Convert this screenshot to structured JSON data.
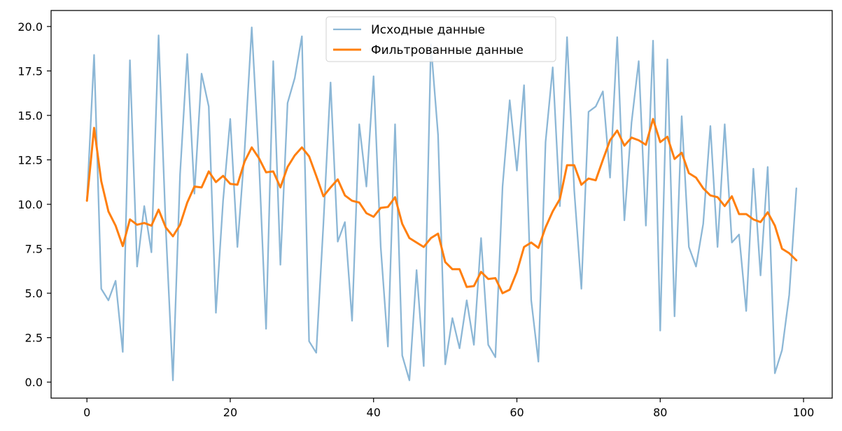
{
  "chart_data": {
    "type": "line",
    "title": "",
    "xlabel": "",
    "ylabel": "",
    "xlim": [
      -5,
      104
    ],
    "ylim": [
      -0.9,
      20.9
    ],
    "xticks": [
      0,
      20,
      40,
      60,
      80,
      100
    ],
    "yticks": [
      0.0,
      2.5,
      5.0,
      7.5,
      10.0,
      12.5,
      15.0,
      17.5,
      20.0
    ],
    "xtick_labels": [
      "0",
      "20",
      "40",
      "60",
      "80",
      "100"
    ],
    "ytick_labels": [
      "0.0",
      "2.5",
      "5.0",
      "7.5",
      "10.0",
      "12.5",
      "15.0",
      "17.5",
      "20.0"
    ],
    "grid": false,
    "legend_position": "top-center",
    "series": [
      {
        "name": "Исходные данные",
        "color": "#8cb7d6",
        "x": [
          0,
          1,
          2,
          3,
          4,
          5,
          6,
          7,
          8,
          9,
          10,
          11,
          12,
          13,
          14,
          15,
          16,
          17,
          18,
          19,
          20,
          21,
          22,
          23,
          24,
          25,
          26,
          27,
          28,
          29,
          30,
          31,
          32,
          33,
          34,
          35,
          36,
          37,
          38,
          39,
          40,
          41,
          42,
          43,
          44,
          45,
          46,
          47,
          48,
          49,
          50,
          51,
          52,
          53,
          54,
          55,
          56,
          57,
          58,
          59,
          60,
          61,
          62,
          63,
          64,
          65,
          66,
          67,
          68,
          69,
          70,
          71,
          72,
          73,
          74,
          75,
          76,
          77,
          78,
          79,
          80,
          81,
          82,
          83,
          84,
          85,
          86,
          87,
          88,
          89,
          90,
          91,
          92,
          93,
          94,
          95,
          96,
          97,
          98,
          99
        ],
        "values": [
          10.2,
          18.4,
          5.25,
          4.6,
          5.7,
          1.7,
          18.1,
          6.5,
          9.9,
          7.3,
          19.5,
          8.7,
          0.1,
          11.7,
          18.45,
          10.6,
          17.35,
          15.5,
          3.9,
          10.2,
          14.8,
          7.6,
          13.0,
          19.95,
          12.5,
          3.0,
          18.05,
          6.6,
          15.7,
          17.1,
          19.45,
          2.3,
          1.65,
          8.9,
          16.85,
          7.9,
          9.0,
          3.45,
          14.5,
          11.0,
          17.2,
          7.6,
          2.0,
          14.5,
          1.5,
          0.1,
          6.3,
          0.9,
          19.0,
          13.9,
          1.0,
          3.6,
          1.9,
          4.6,
          2.1,
          8.1,
          2.1,
          1.4,
          11.0,
          15.85,
          11.9,
          16.7,
          4.6,
          1.15,
          13.5,
          17.7,
          9.9,
          19.4,
          10.8,
          5.25,
          15.2,
          15.5,
          16.35,
          11.5,
          19.4,
          9.1,
          14.6,
          18.05,
          8.8,
          19.2,
          2.9,
          18.15,
          3.7,
          14.95,
          7.6,
          6.5,
          8.9,
          14.4,
          7.6,
          14.5,
          7.85,
          8.3,
          4.0,
          12.0,
          6.0,
          12.1,
          0.5,
          1.8,
          4.9,
          10.9
        ]
      },
      {
        "name": "Фильтрованные данные",
        "color": "#ff7f0e",
        "x": [
          0,
          1,
          2,
          3,
          4,
          5,
          6,
          7,
          8,
          9,
          10,
          11,
          12,
          13,
          14,
          15,
          16,
          17,
          18,
          19,
          20,
          21,
          22,
          23,
          24,
          25,
          26,
          27,
          28,
          29,
          30,
          31,
          32,
          33,
          34,
          35,
          36,
          37,
          38,
          39,
          40,
          41,
          42,
          43,
          44,
          45,
          46,
          47,
          48,
          49,
          50,
          51,
          52,
          53,
          54,
          55,
          56,
          57,
          58,
          59,
          60,
          61,
          62,
          63,
          64,
          65,
          66,
          67,
          68,
          69,
          70,
          71,
          72,
          73,
          74,
          75,
          76,
          77,
          78,
          79,
          80,
          81,
          82,
          83,
          84,
          85,
          86,
          87,
          88,
          89,
          90,
          91,
          92,
          93,
          94,
          95,
          96,
          97,
          98,
          99
        ],
        "values": [
          10.2,
          14.3,
          11.3,
          9.6,
          8.8,
          7.65,
          9.15,
          8.85,
          8.95,
          8.8,
          9.7,
          8.7,
          8.2,
          8.85,
          10.1,
          11.0,
          10.95,
          11.85,
          11.25,
          11.6,
          11.15,
          11.1,
          12.4,
          13.2,
          12.6,
          11.8,
          11.85,
          10.95,
          12.1,
          12.75,
          13.2,
          12.7,
          11.6,
          10.45,
          10.95,
          11.4,
          10.5,
          10.2,
          10.1,
          9.5,
          9.3,
          9.8,
          9.85,
          10.4,
          8.9,
          8.1,
          7.85,
          7.6,
          8.1,
          8.35,
          6.75,
          6.35,
          6.35,
          5.35,
          5.4,
          6.2,
          5.8,
          5.85,
          5.0,
          5.2,
          6.2,
          7.6,
          7.85,
          7.55,
          8.7,
          9.6,
          10.3,
          12.2,
          12.2,
          11.1,
          11.45,
          11.35,
          12.5,
          13.6,
          14.15,
          13.3,
          13.75,
          13.6,
          13.35,
          14.8,
          13.5,
          13.8,
          12.55,
          12.9,
          11.75,
          11.5,
          10.9,
          10.5,
          10.4,
          9.9,
          10.45,
          9.45,
          9.45,
          9.15,
          9.0,
          9.55,
          8.8,
          7.5,
          7.25,
          6.85
        ]
      }
    ]
  }
}
